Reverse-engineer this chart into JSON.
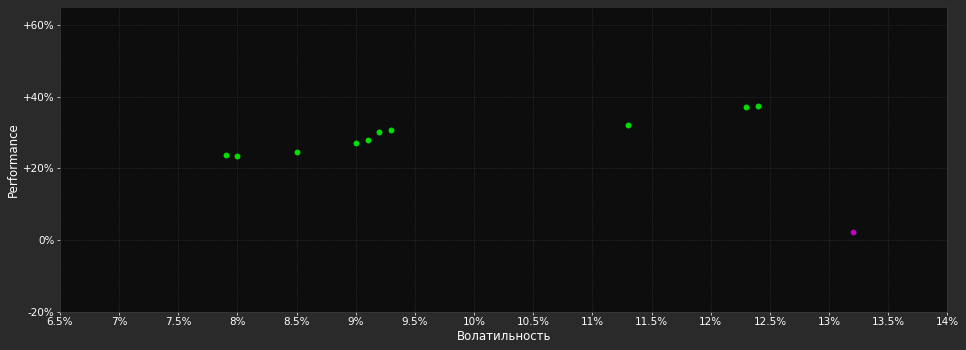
{
  "background_color": "#2a2a2a",
  "plot_bg_color": "#0d0d0d",
  "grid_color": "#3a3a3a",
  "text_color": "#ffffff",
  "xlabel": "Волатильность",
  "ylabel": "Performance",
  "xlim": [
    0.065,
    0.14
  ],
  "ylim": [
    -0.2,
    0.65
  ],
  "xticks": [
    0.065,
    0.07,
    0.075,
    0.08,
    0.085,
    0.09,
    0.095,
    0.1,
    0.105,
    0.11,
    0.115,
    0.12,
    0.125,
    0.13,
    0.135,
    0.14
  ],
  "xtick_labels": [
    "6.5%",
    "7%",
    "7.5%",
    "8%",
    "8.5%",
    "9%",
    "9.5%",
    "10%",
    "10.5%",
    "11%",
    "11.5%",
    "12%",
    "12.5%",
    "13%",
    "13.5%",
    "14%"
  ],
  "yticks": [
    -0.2,
    0.0,
    0.2,
    0.4,
    0.6
  ],
  "ytick_labels": [
    "-20%",
    "0%",
    "+20%",
    "+40%",
    "+60%"
  ],
  "green_points": [
    [
      0.079,
      0.237
    ],
    [
      0.08,
      0.233
    ],
    [
      0.085,
      0.245
    ],
    [
      0.09,
      0.27
    ],
    [
      0.091,
      0.278
    ],
    [
      0.092,
      0.3
    ],
    [
      0.093,
      0.308
    ],
    [
      0.113,
      0.32
    ],
    [
      0.123,
      0.37
    ],
    [
      0.124,
      0.375
    ]
  ],
  "magenta_points": [
    [
      0.132,
      0.022
    ]
  ],
  "green_color": "#00dd00",
  "magenta_color": "#bb00bb",
  "marker_size": 18,
  "font_size_ticks": 7.5,
  "font_size_labels": 8.5
}
